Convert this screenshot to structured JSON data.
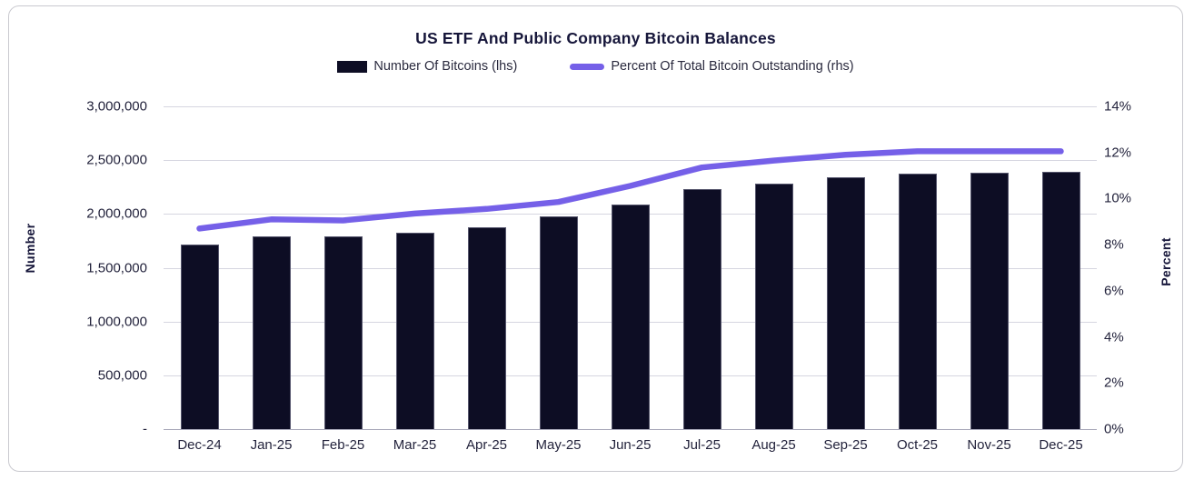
{
  "card": {
    "title": "US ETF And Public Company Bitcoin Balances"
  },
  "legend": {
    "bar_label": "Number Of Bitcoins (lhs)",
    "line_label": "Percent Of Total Bitcoin Outstanding (rhs)"
  },
  "colors": {
    "bar": "#0d0d24",
    "line": "#7560e8",
    "gridline": "#d6d6e0",
    "axis_line": "#a8a8b8",
    "text": "#23233c"
  },
  "chart_data": {
    "type": "bar",
    "title": "US ETF And Public Company Bitcoin Balances",
    "categories": [
      "Dec-24",
      "Jan-25",
      "Feb-25",
      "Mar-25",
      "Apr-25",
      "May-25",
      "Jun-25",
      "Jul-25",
      "Aug-25",
      "Sep-25",
      "Oct-25",
      "Nov-25",
      "Dec-25"
    ],
    "series": [
      {
        "name": "Number Of Bitcoins (lhs)",
        "type": "bar",
        "axis": "left",
        "color": "#0d0d24",
        "values": [
          1715000,
          1795000,
          1790000,
          1825000,
          1880000,
          1975000,
          2085000,
          2230000,
          2285000,
          2340000,
          2375000,
          2385000,
          2395000
        ]
      },
      {
        "name": "Percent Of Total Bitcoin Outstanding (rhs)",
        "type": "line",
        "axis": "right",
        "color": "#7560e8",
        "values": [
          8.7,
          9.1,
          9.05,
          9.35,
          9.55,
          9.85,
          10.55,
          11.35,
          11.65,
          11.9,
          12.05,
          12.05,
          12.05
        ]
      }
    ],
    "left_axis": {
      "label": "Number",
      "min": 0,
      "max": 3000000,
      "tick_values": [
        3000000,
        2500000,
        2000000,
        1500000,
        1000000,
        500000,
        0
      ],
      "tick_labels": [
        "3,000,000",
        "2,500,000",
        "2,000,000",
        "1,500,000",
        "1,000,000",
        "500,000",
        "-"
      ]
    },
    "right_axis": {
      "label": "Percent",
      "min": 0,
      "max": 14,
      "tick_values": [
        14,
        12,
        10,
        8,
        6,
        4,
        2,
        0
      ],
      "tick_labels": [
        "14%",
        "12%",
        "10%",
        "8%",
        "6%",
        "4%",
        "2%",
        "0%"
      ]
    },
    "grid": "horizontal",
    "legend_position": "top"
  }
}
